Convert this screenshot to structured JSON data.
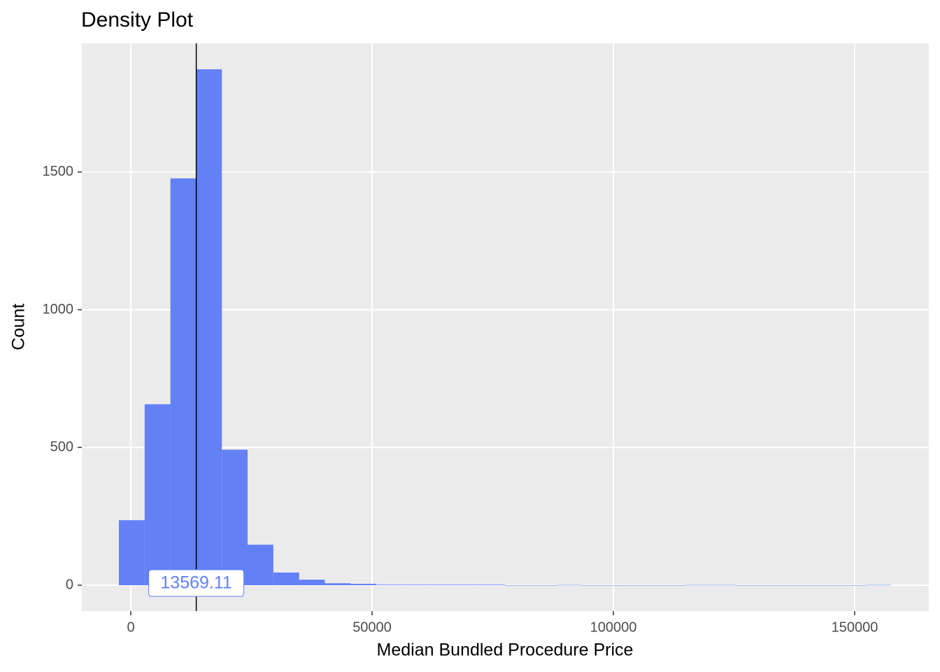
{
  "chart_data": {
    "type": "histogram",
    "title": "Density Plot",
    "x_label": "Median Bundled Procedure Price",
    "y_label": "Count",
    "bins": [
      -2460,
      2873,
      8207,
      13540,
      18873,
      24207,
      29540,
      34873,
      40207,
      45540,
      50873,
      56207,
      61540,
      66873,
      72207,
      77540,
      82873,
      88207,
      93540,
      98873,
      104207,
      109540,
      114873,
      120207,
      125540,
      130873,
      136207,
      141540,
      146873,
      152207,
      157540
    ],
    "values": [
      236,
      657,
      1477,
      1873,
      492,
      147,
      46,
      20,
      7,
      5,
      2,
      2,
      2,
      2,
      2,
      0,
      0,
      1,
      0,
      0,
      0,
      0,
      1,
      1,
      0,
      0,
      0,
      0,
      0,
      1
    ],
    "color": "#6380f5",
    "vline": 13569.11,
    "xlim": [
      -10145,
      165362
    ],
    "ylim": [
      -94,
      1967
    ],
    "xticks": [
      0,
      50000,
      100000,
      150000
    ],
    "yticks": [
      0,
      500,
      1000,
      1500
    ],
    "grid": true
  }
}
